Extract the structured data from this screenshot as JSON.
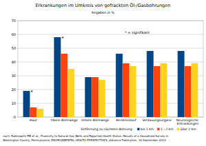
{
  "chart_data": {
    "type": "bar",
    "title": "Erkrankungen im Umkreis von gefrackten Öl-/Gasbohrungen",
    "subtitle": "Angaben in %",
    "annotation": "* = signifikant",
    "categories": [
      "Haut",
      "Obere Atemwege",
      "Untere Atemwege",
      "Herzkreislauf",
      "Verdauungsorgane",
      "Neurologische Erkrankungen"
    ],
    "series": [
      {
        "name": "bis 1 km",
        "color": "#004586",
        "values": [
          19,
          58,
          29,
          46,
          48,
          48
        ]
      },
      {
        "name": "1 - 2 km",
        "color": "#ff420e",
        "values": [
          7,
          46,
          29,
          39,
          37,
          37
        ]
      },
      {
        "name": "über 2 km",
        "color": "#ffd320",
        "values": [
          6,
          35,
          27,
          37,
          39,
          39
        ]
      }
    ],
    "significance": [
      "*",
      "*",
      null,
      null,
      null,
      null
    ],
    "ylim": [
      0,
      70
    ],
    "yticks": [
      0,
      10,
      20,
      30,
      40,
      50,
      60,
      70
    ],
    "grid": true,
    "legend": "bottom",
    "legend_title": "Entfernung zu nächsten Bohrung:",
    "source": [
      "nach: Rabinowitz PM et al., Proximity to Natural Gas Wells and Reported Health Status: Results of a Household Survey in",
      "Washington County, Pennsylvania, ENVIRONMENTAL HEALTH PERSPECTIVES, Advance Publication, 10 September 2014"
    ]
  }
}
